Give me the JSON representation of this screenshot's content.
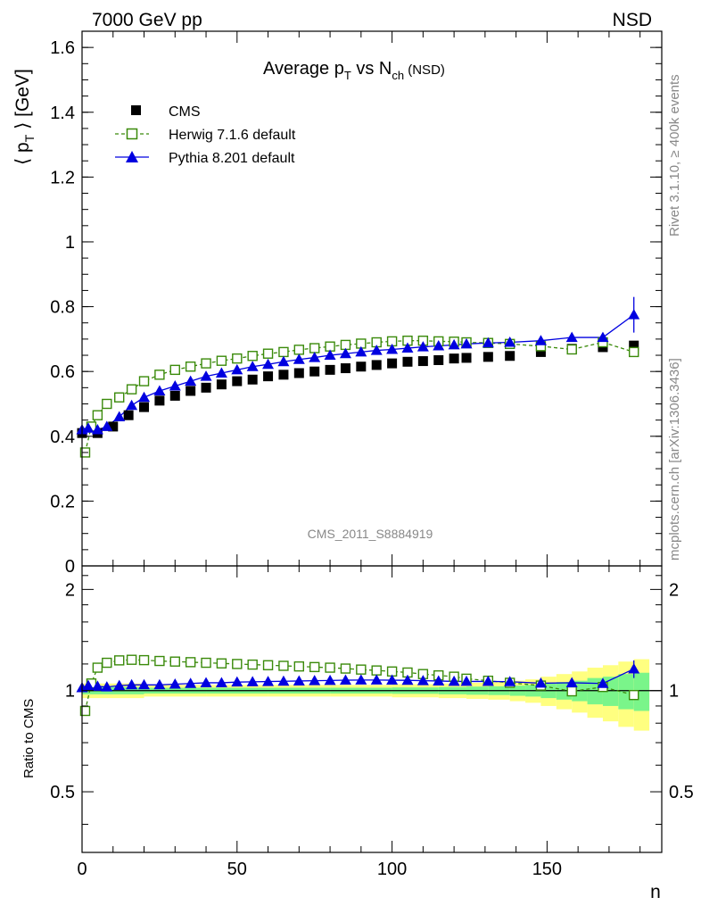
{
  "header": {
    "left": "7000 GeV pp",
    "right": "NSD"
  },
  "side_labels": {
    "rivet": "Rivet 3.1.10, ≥ 400k events",
    "mcplots": "mcplots.cern.ch [arXiv:1306.3436]"
  },
  "watermark": "CMS_2011_S8884919",
  "colors": {
    "cms": "#000000",
    "herwig": "#3a8a0a",
    "pythia": "#0000e0",
    "band_inner": "#7af58a",
    "band_outer": "#ffff80"
  },
  "chart_data": [
    {
      "type": "scatter",
      "title": {
        "main": "Average p",
        "sub1": "T",
        "mid": " vs N",
        "sub2": "ch",
        "tail": " (NSD)"
      },
      "ylabel": {
        "pre": "⟨ p",
        "sub": "T",
        "post": " ⟩ [GeV]"
      },
      "xlabel": "",
      "xlim": [
        0,
        187
      ],
      "ylim": [
        0,
        1.65
      ],
      "y_ticks": [
        0,
        0.2,
        0.4,
        0.6,
        0.8,
        1,
        1.2,
        1.4,
        1.6
      ],
      "y_tick_labels": [
        "0",
        "0.2",
        "0.4",
        "0.6",
        "0.8",
        "1",
        "1.2",
        "1.4",
        "1.6"
      ],
      "legend_position": "top-left",
      "series": [
        {
          "name": "CMS",
          "marker": "filled-square",
          "color": "#000000",
          "line": "none",
          "x": [
            0,
            5,
            10,
            15,
            20,
            25,
            30,
            35,
            40,
            45,
            50,
            55,
            60,
            65,
            70,
            75,
            80,
            85,
            90,
            95,
            100,
            105,
            110,
            115,
            120,
            124,
            131,
            138,
            148,
            158,
            168,
            178
          ],
          "y": [
            0.41,
            0.41,
            0.43,
            0.465,
            0.49,
            0.51,
            0.525,
            0.54,
            0.55,
            0.56,
            0.57,
            0.575,
            0.585,
            0.59,
            0.595,
            0.6,
            0.605,
            0.61,
            0.615,
            0.62,
            0.625,
            0.63,
            0.632,
            0.635,
            0.64,
            0.642,
            0.645,
            0.648,
            0.66,
            0.67,
            0.675,
            0.68
          ]
        },
        {
          "name": "Herwig 7.1.6 default",
          "marker": "open-square",
          "color": "#3a8a0a",
          "line": "dashed",
          "x": [
            1,
            3,
            5,
            8,
            12,
            16,
            20,
            25,
            30,
            35,
            40,
            45,
            50,
            55,
            60,
            65,
            70,
            75,
            80,
            85,
            90,
            95,
            100,
            105,
            110,
            115,
            120,
            124,
            131,
            138,
            148,
            158,
            168,
            178
          ],
          "y": [
            0.35,
            0.43,
            0.465,
            0.5,
            0.52,
            0.545,
            0.57,
            0.59,
            0.605,
            0.615,
            0.625,
            0.633,
            0.64,
            0.648,
            0.655,
            0.66,
            0.667,
            0.672,
            0.677,
            0.682,
            0.686,
            0.69,
            0.693,
            0.695,
            0.695,
            0.693,
            0.692,
            0.69,
            0.688,
            0.685,
            0.678,
            0.668,
            0.69,
            0.66
          ]
        },
        {
          "name": "Pythia 8.201 default",
          "marker": "filled-triangle",
          "color": "#0000e0",
          "line": "solid",
          "x": [
            0,
            2,
            5,
            8,
            12,
            16,
            20,
            25,
            30,
            35,
            40,
            45,
            50,
            55,
            60,
            65,
            70,
            75,
            80,
            85,
            90,
            95,
            100,
            105,
            110,
            115,
            120,
            124,
            131,
            138,
            148,
            158,
            168,
            178
          ],
          "y": [
            0.42,
            0.425,
            0.42,
            0.43,
            0.46,
            0.495,
            0.52,
            0.54,
            0.555,
            0.57,
            0.585,
            0.595,
            0.605,
            0.615,
            0.622,
            0.63,
            0.637,
            0.643,
            0.65,
            0.655,
            0.66,
            0.665,
            0.668,
            0.672,
            0.676,
            0.679,
            0.682,
            0.685,
            0.688,
            0.69,
            0.695,
            0.705,
            0.705,
            0.775
          ],
          "yerr_last": 0.055
        }
      ]
    },
    {
      "type": "scatter",
      "ylabel": "Ratio to CMS",
      "xlabel": "n",
      "xlim": [
        0,
        187
      ],
      "ylim": [
        0.33,
        2.35
      ],
      "log_y": true,
      "y_ticks": [
        0.5,
        1,
        2
      ],
      "y_tick_labels": [
        "0.5",
        "1",
        "2"
      ],
      "x_ticks": [
        0,
        50,
        100,
        150
      ],
      "x_tick_labels": [
        "0",
        "50",
        "100",
        "150"
      ],
      "reference": 1,
      "uncertainty_band": {
        "x_edges": [
          0,
          20,
          40,
          60,
          80,
          100,
          115,
          124,
          131,
          138,
          143,
          148,
          153,
          158,
          163,
          168,
          173,
          178,
          183
        ],
        "inner": [
          0.025,
          0.02,
          0.02,
          0.02,
          0.02,
          0.022,
          0.025,
          0.028,
          0.03,
          0.035,
          0.04,
          0.05,
          0.06,
          0.07,
          0.09,
          0.1,
          0.12,
          0.13
        ],
        "outer": [
          0.05,
          0.04,
          0.04,
          0.04,
          0.04,
          0.045,
          0.05,
          0.055,
          0.06,
          0.07,
          0.08,
          0.1,
          0.12,
          0.14,
          0.17,
          0.19,
          0.22,
          0.24
        ]
      },
      "series": [
        {
          "name": "Herwig 7.1.6 default",
          "color": "#3a8a0a",
          "x": [
            1,
            3,
            5,
            8,
            12,
            16,
            20,
            25,
            30,
            35,
            40,
            45,
            50,
            55,
            60,
            65,
            70,
            75,
            80,
            85,
            90,
            95,
            100,
            105,
            110,
            115,
            120,
            124,
            131,
            138,
            148,
            158,
            168,
            178
          ],
          "y": [
            0.87,
            1.05,
            1.17,
            1.21,
            1.23,
            1.235,
            1.232,
            1.225,
            1.22,
            1.215,
            1.21,
            1.205,
            1.2,
            1.195,
            1.19,
            1.185,
            1.18,
            1.175,
            1.17,
            1.163,
            1.155,
            1.148,
            1.14,
            1.132,
            1.12,
            1.11,
            1.1,
            1.085,
            1.07,
            1.055,
            1.035,
            0.995,
            1.025,
            0.97
          ]
        },
        {
          "name": "Pythia 8.201 default",
          "color": "#0000e0",
          "x": [
            0,
            2,
            5,
            8,
            12,
            16,
            20,
            25,
            30,
            35,
            40,
            45,
            50,
            55,
            60,
            65,
            70,
            75,
            80,
            85,
            90,
            95,
            100,
            105,
            110,
            115,
            120,
            124,
            131,
            138,
            148,
            158,
            168,
            178
          ],
          "y": [
            1.02,
            1.035,
            1.03,
            1.025,
            1.035,
            1.04,
            1.04,
            1.04,
            1.045,
            1.05,
            1.055,
            1.055,
            1.06,
            1.062,
            1.064,
            1.066,
            1.068,
            1.07,
            1.072,
            1.074,
            1.075,
            1.075,
            1.074,
            1.073,
            1.07,
            1.068,
            1.065,
            1.065,
            1.065,
            1.063,
            1.052,
            1.055,
            1.05,
            1.16
          ],
          "yerr_last": 0.07
        }
      ]
    }
  ]
}
